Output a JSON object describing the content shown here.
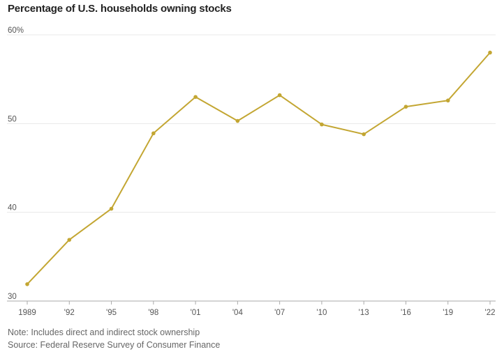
{
  "chart_data": {
    "type": "line",
    "title": "Percentage of U.S. households owning stocks",
    "xlabel": "",
    "ylabel": "",
    "categories": [
      "1989",
      "'92",
      "'95",
      "'98",
      "'01",
      "'04",
      "'07",
      "'10",
      "'13",
      "'16",
      "'19",
      "'22"
    ],
    "series": [
      {
        "values": [
          31.9,
          36.9,
          40.4,
          48.9,
          53.0,
          50.3,
          53.2,
          49.9,
          48.8,
          51.9,
          52.6,
          58.0
        ]
      }
    ],
    "ylim": [
      30,
      60
    ],
    "yticks": [
      30,
      40,
      50,
      60
    ],
    "ytick_labels": [
      "30",
      "40",
      "50",
      "60%"
    ],
    "grid": true,
    "legend": "none",
    "colors": {
      "line": "#c3a632",
      "grid": "#e8e8e8",
      "axis": "#aaaaaa",
      "text": "#555555"
    }
  },
  "notes": {
    "note": "Note: Includes direct and indirect stock ownership",
    "source": "Source: Federal Reserve Survey of Consumer Finance"
  }
}
